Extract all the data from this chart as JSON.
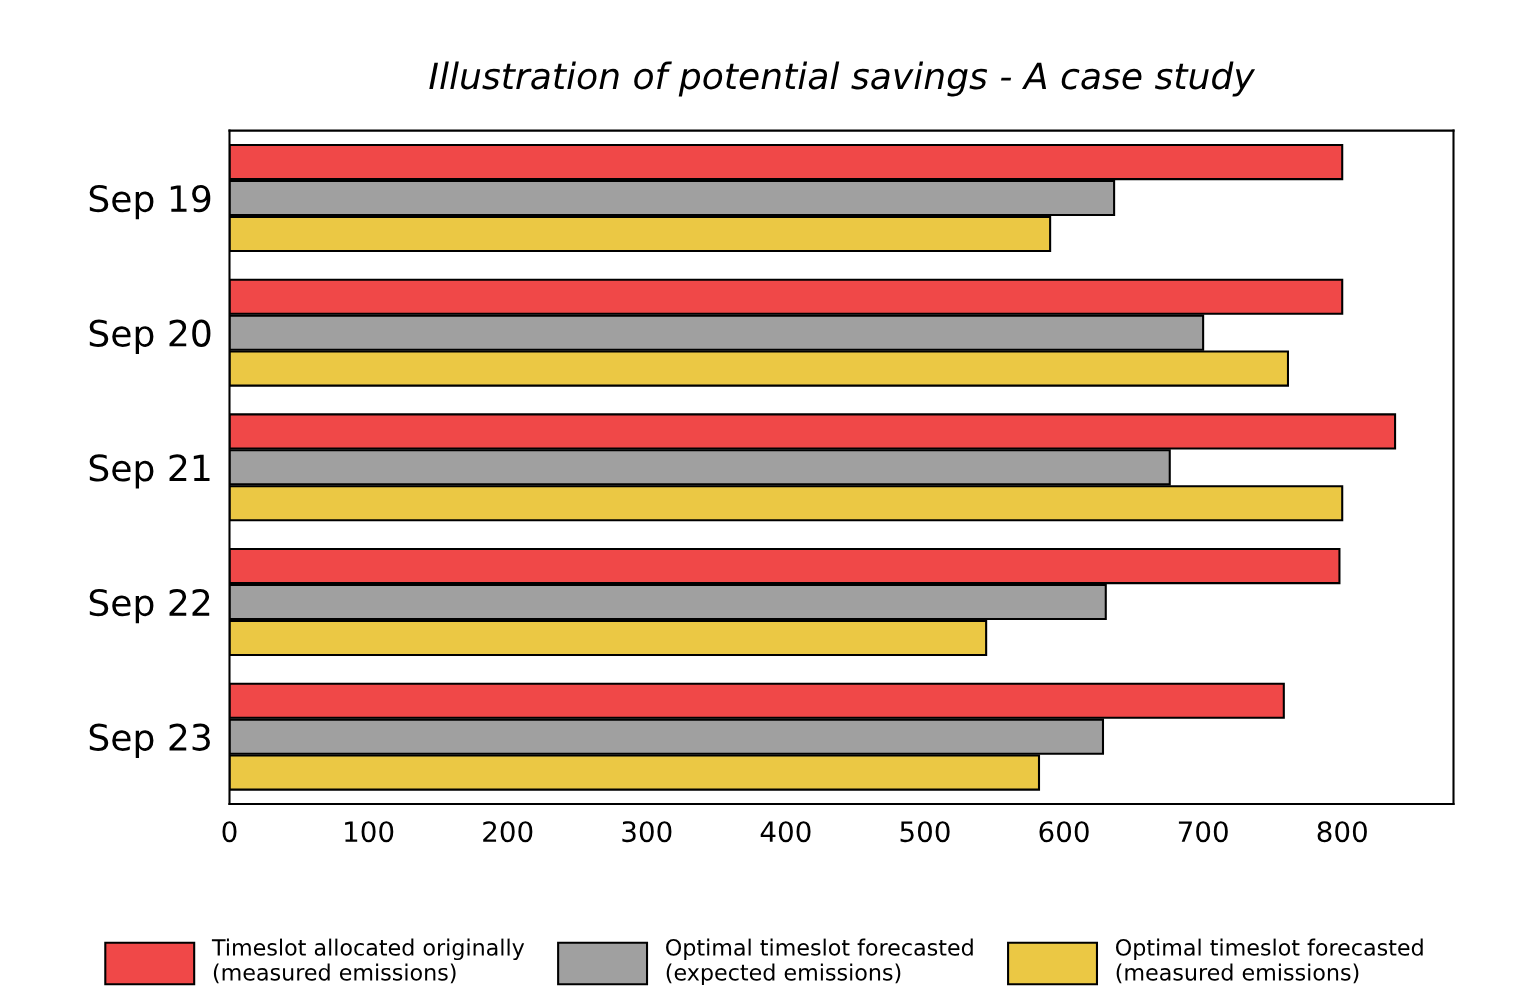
{
  "chart_data": {
    "type": "bar",
    "orientation": "horizontal",
    "title": "Illustration of potential savings - A case study",
    "categories": [
      "Sep 19",
      "Sep 20",
      "Sep 21",
      "Sep 22",
      "Sep 23"
    ],
    "series": [
      {
        "name": "Timeslot allocated originally\n(measured emissions)",
        "color": "#f04848",
        "values": [
          800,
          800,
          838,
          798,
          758
        ]
      },
      {
        "name": "Optimal timeslot forecasted\n(expected emissions)",
        "color": "#a0a0a0",
        "values": [
          636,
          700,
          676,
          630,
          628
        ]
      },
      {
        "name": "Optimal timeslot forecasted\n(measured emissions)",
        "color": "#ebc844",
        "values": [
          590,
          761,
          800,
          544,
          582
        ]
      }
    ],
    "xlim": [
      0,
      880
    ],
    "xticks": [
      0,
      100,
      200,
      300,
      400,
      500,
      600,
      700,
      800
    ],
    "grid": false,
    "legend": "bottom"
  }
}
